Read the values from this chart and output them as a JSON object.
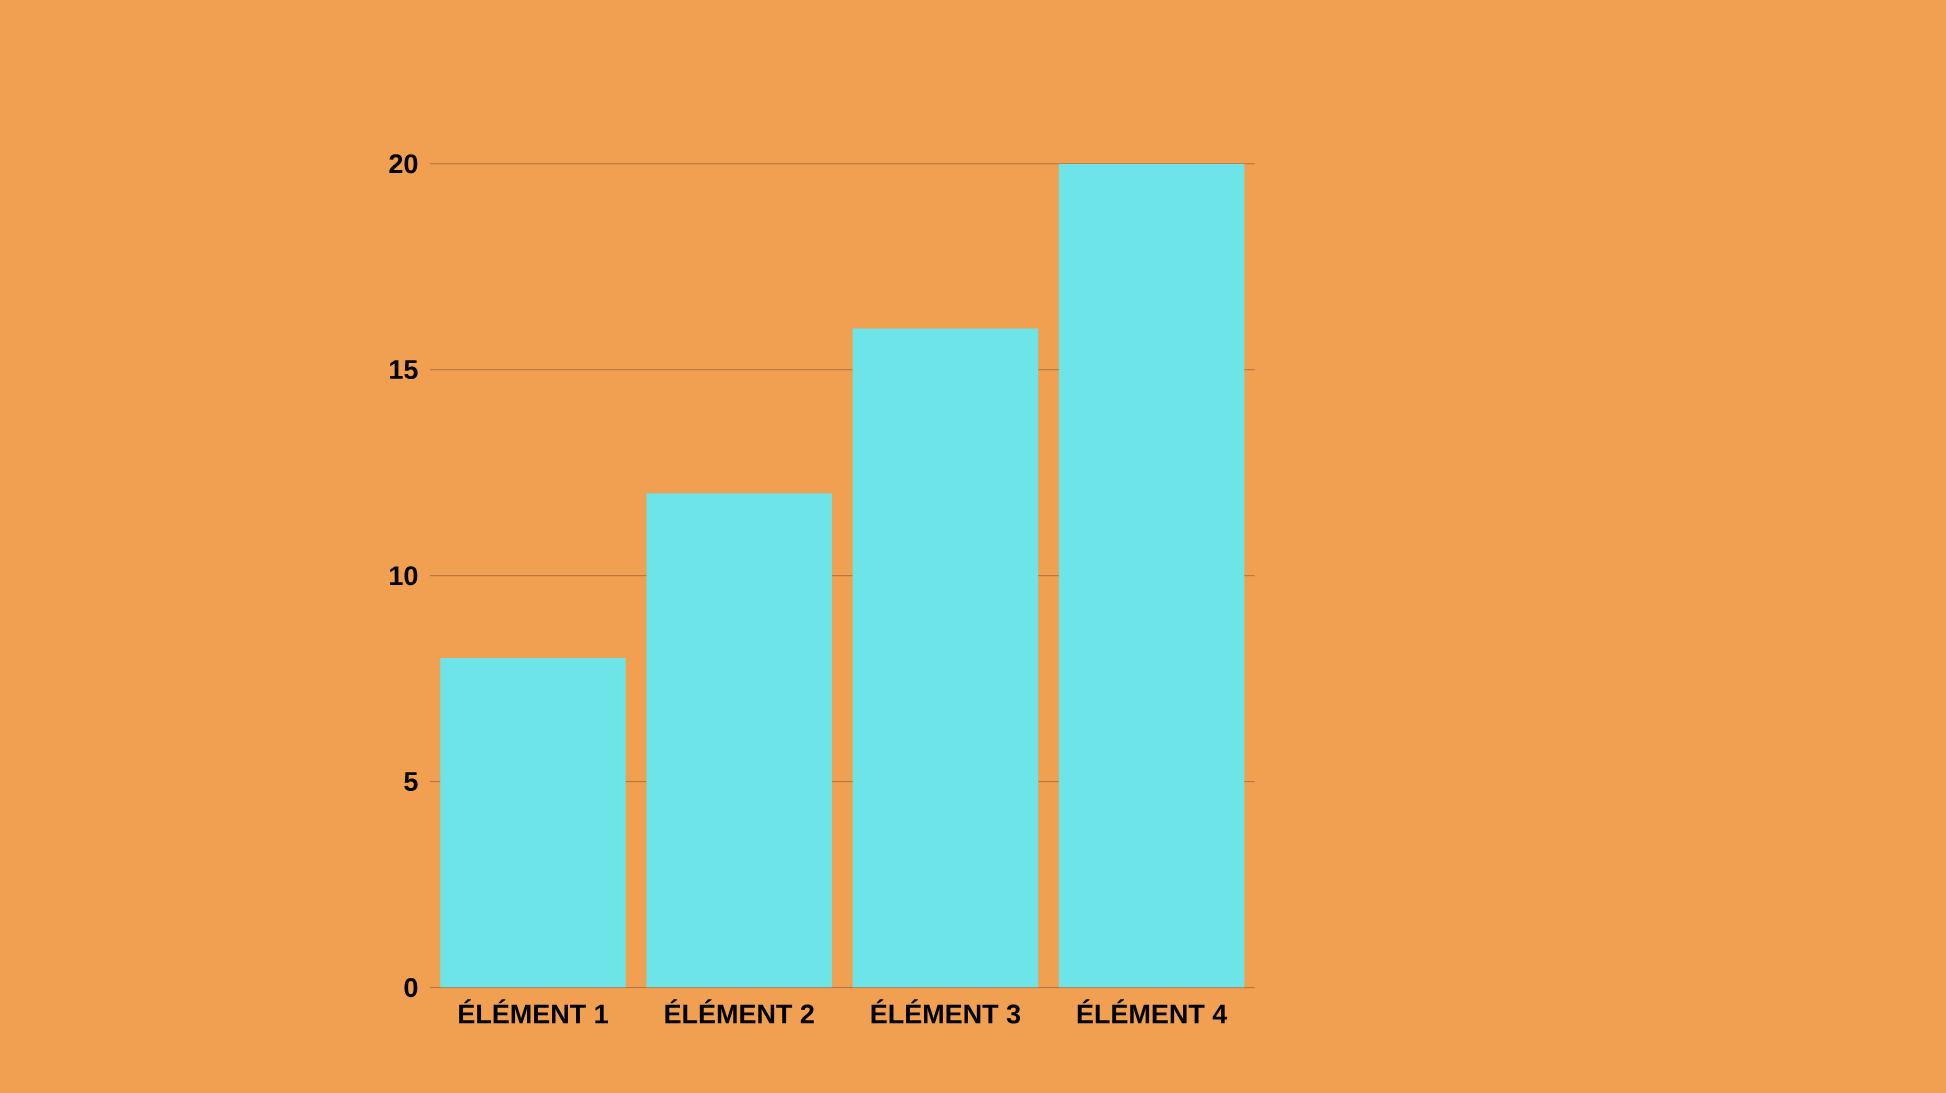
{
  "chart_data": {
    "type": "bar",
    "categories": [
      "ÉLÉMENT 1",
      "ÉLÉMENT 2",
      "ÉLÉMENT 3",
      "ÉLÉMENT 4"
    ],
    "values": [
      8,
      12,
      16,
      20
    ],
    "color": "#6ce4e8",
    "ylim": [
      0,
      20
    ],
    "yticks": [
      0,
      5,
      10,
      15,
      20
    ],
    "grid": "y"
  }
}
